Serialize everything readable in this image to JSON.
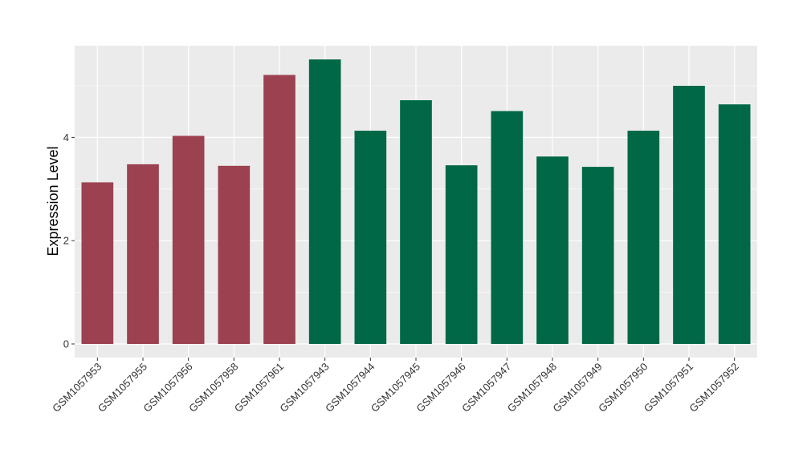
{
  "chart_data": {
    "type": "bar",
    "title": "",
    "xlabel": "",
    "ylabel": "Expression Level",
    "ylim": [
      0,
      5.8
    ],
    "yticks": [
      0,
      2,
      4
    ],
    "grid": true,
    "legend": "none",
    "categories": [
      "GSM1057953",
      "GSM1057955",
      "GSM1057956",
      "GSM1057958",
      "GSM1057961",
      "GSM1057943",
      "GSM1057944",
      "GSM1057945",
      "GSM1057946",
      "GSM1057947",
      "GSM1057948",
      "GSM1057949",
      "GSM1057950",
      "GSM1057951",
      "GSM1057952"
    ],
    "values": [
      3.13,
      3.48,
      4.03,
      3.45,
      5.21,
      5.51,
      4.13,
      4.72,
      3.46,
      4.51,
      3.63,
      3.43,
      4.13,
      5.0,
      4.64
    ],
    "bar_colors": [
      "#9c4150",
      "#9c4150",
      "#9c4150",
      "#9c4150",
      "#9c4150",
      "#006846",
      "#006846",
      "#006846",
      "#006846",
      "#006846",
      "#006846",
      "#006846",
      "#006846",
      "#006846",
      "#006846"
    ],
    "panel_background": "#ebebeb",
    "gridline_color": "#ffffff"
  }
}
